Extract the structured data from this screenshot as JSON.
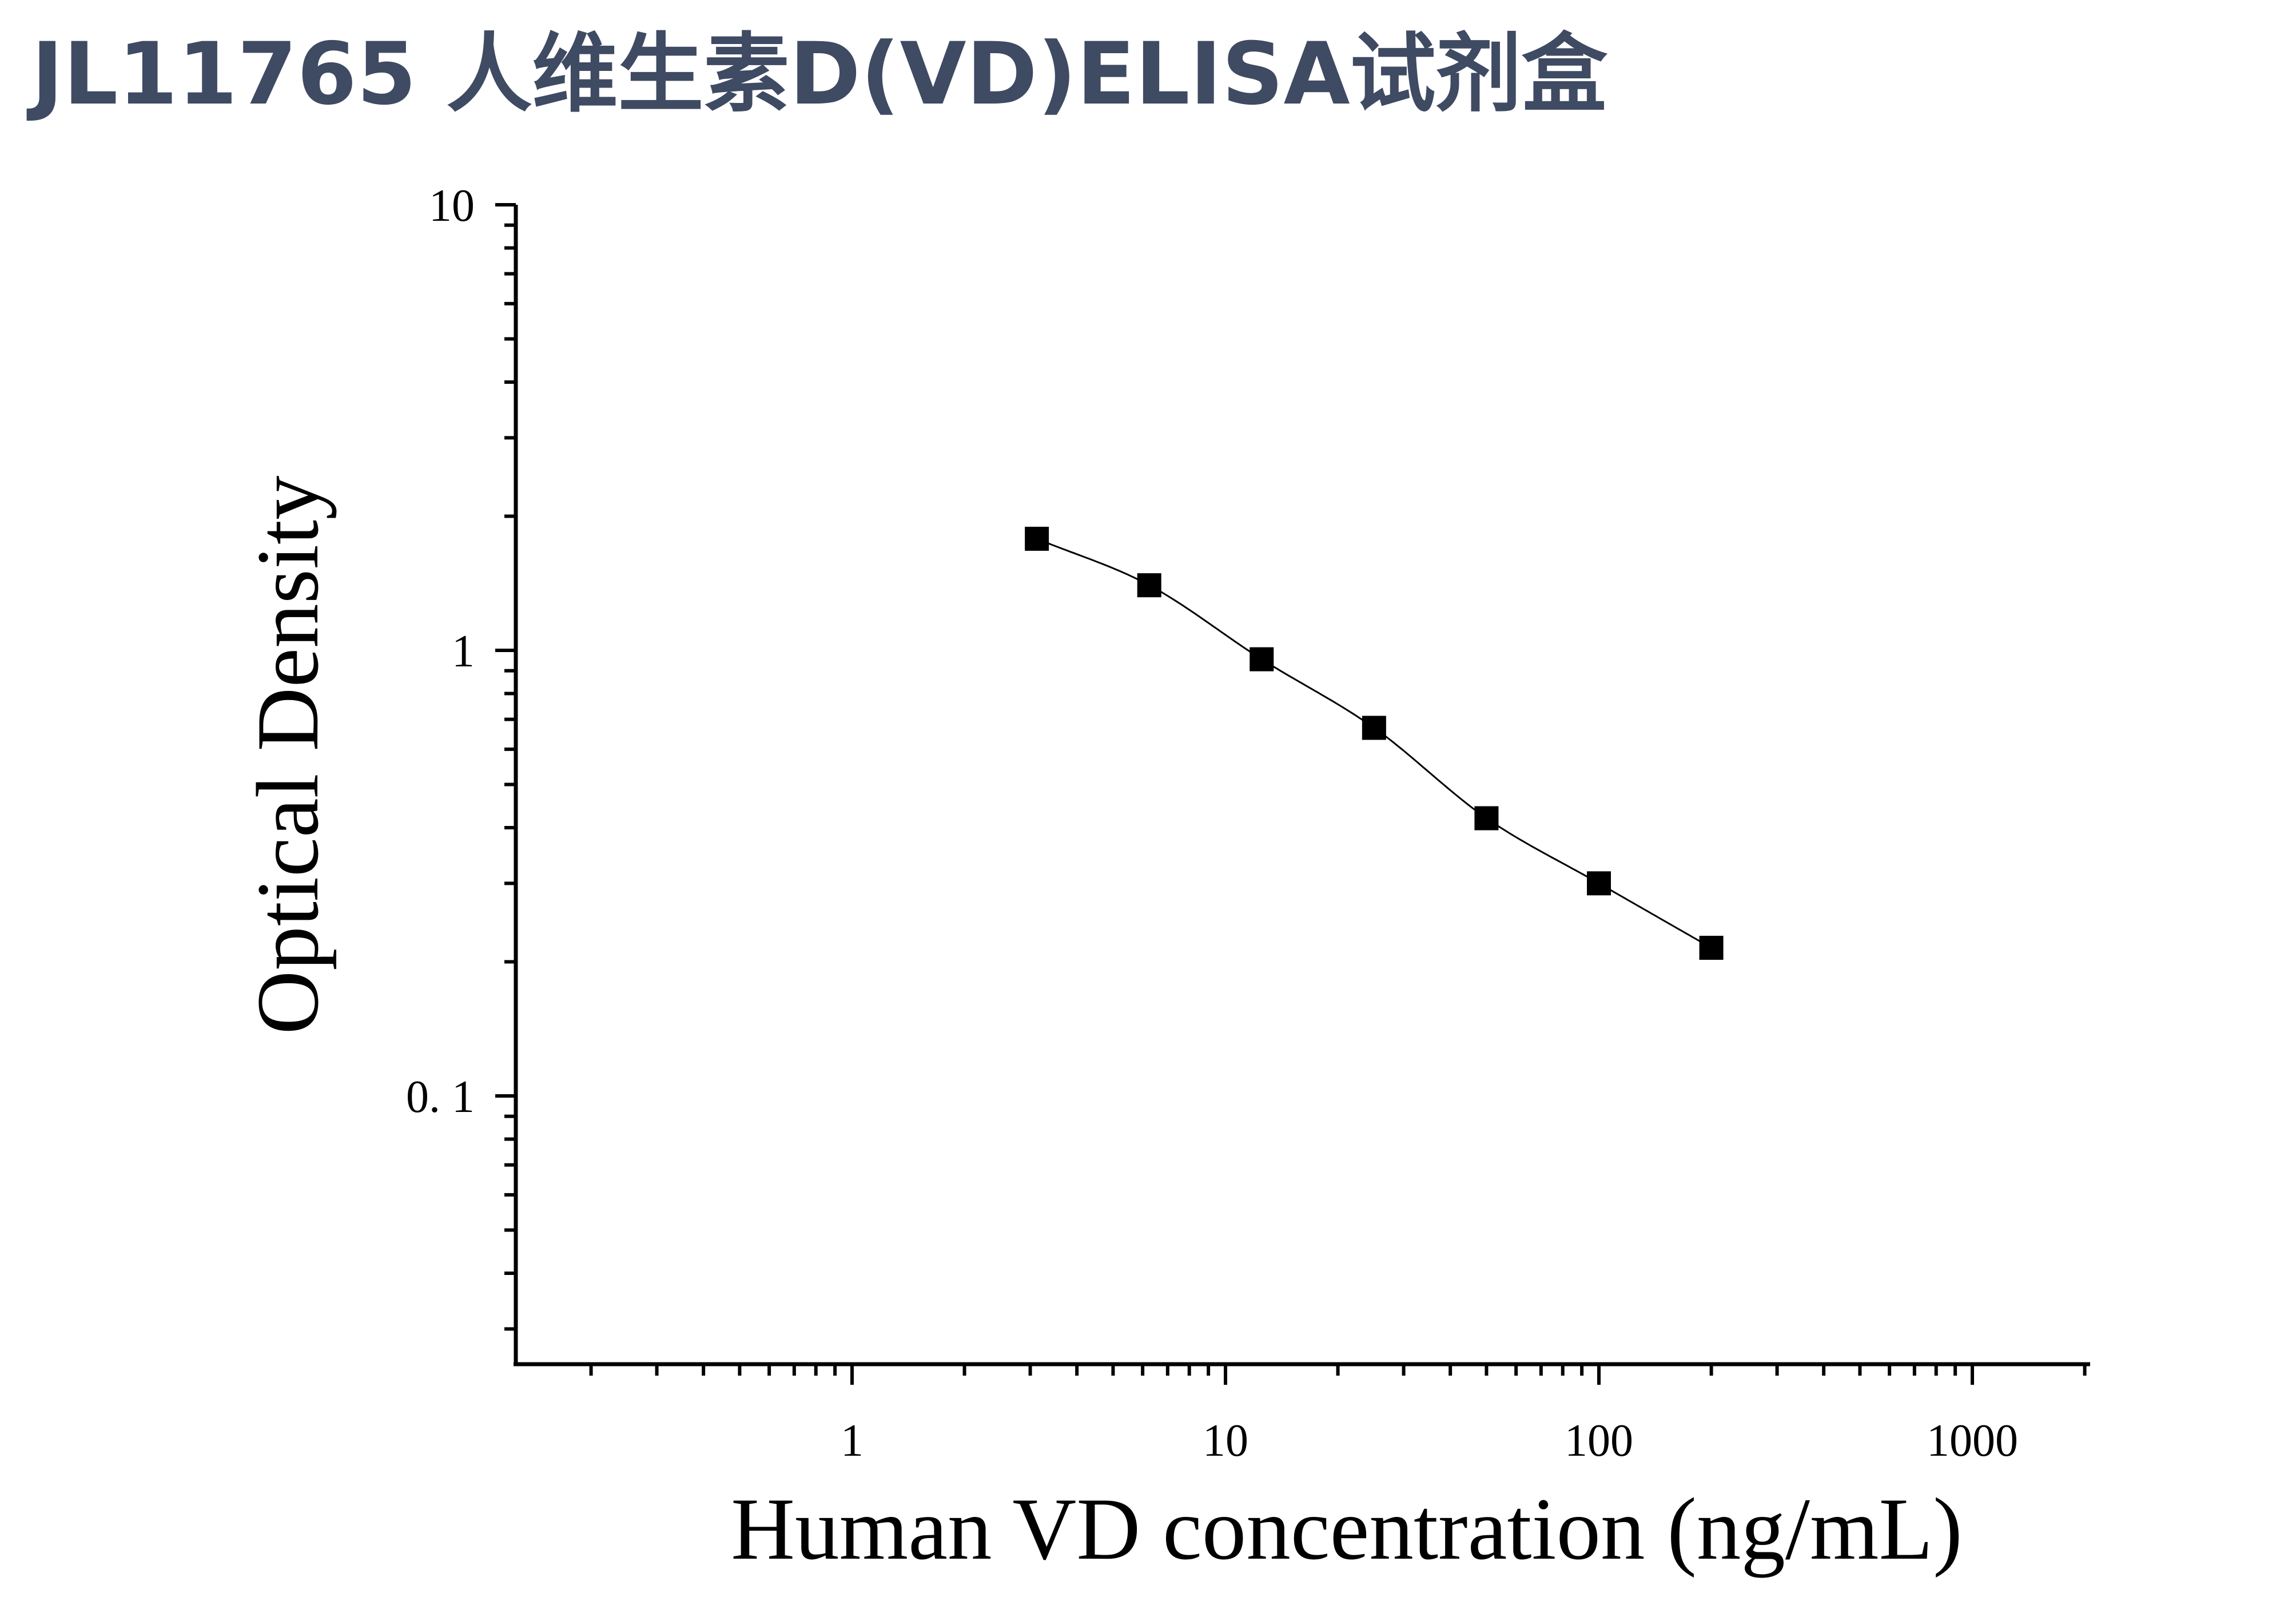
{
  "title": "JL11765 人维生素D(VD)ELISA试剂盒",
  "colors": {
    "title": "#3f4a63",
    "axes": "#000000",
    "series": "#000000"
  },
  "chart_data": {
    "type": "scatter",
    "title": "JL11765 人维生素D(VD)ELISA试剂盒",
    "xlabel": "Human VD concentration (ng/mL)",
    "ylabel": "Optical Density",
    "xscale": "log",
    "yscale": "log",
    "xlim": [
      0.12,
      2000
    ],
    "ylim": [
      0.025,
      10
    ],
    "x_ticks": [
      1,
      10,
      100,
      1000
    ],
    "x_tick_labels": [
      "1",
      "10",
      "100",
      "1000"
    ],
    "y_ticks": [
      0.1,
      1,
      10
    ],
    "y_tick_labels": [
      "0. 1",
      "1",
      "10"
    ],
    "grid": false,
    "legend": "none",
    "series": [
      {
        "marker": "square",
        "fit_line": "smooth curve through points",
        "points": [
          {
            "x": 3.125,
            "y": 1.78
          },
          {
            "x": 6.25,
            "y": 1.4
          },
          {
            "x": 12.5,
            "y": 0.955
          },
          {
            "x": 25,
            "y": 0.67
          },
          {
            "x": 50,
            "y": 0.42
          },
          {
            "x": 100,
            "y": 0.3
          },
          {
            "x": 200,
            "y": 0.215
          }
        ]
      }
    ]
  }
}
